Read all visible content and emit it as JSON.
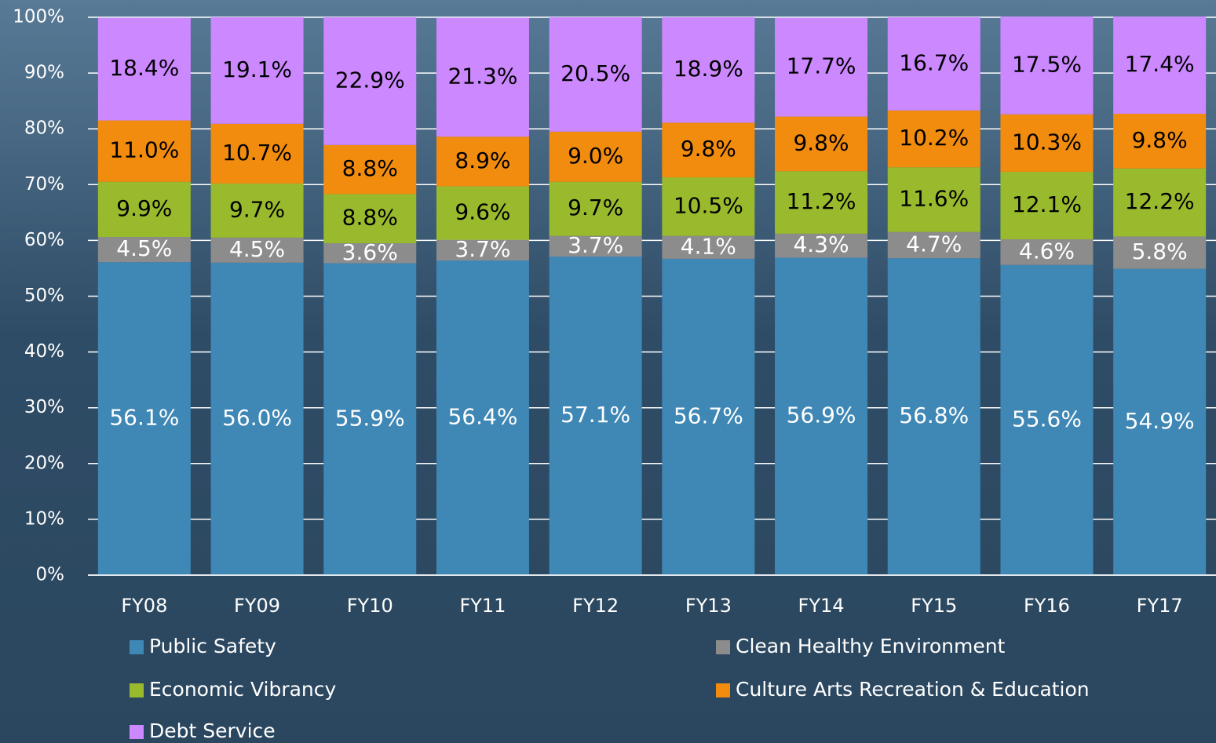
{
  "chart_data": {
    "type": "stacked-bar",
    "categories": [
      "FY08",
      "FY09",
      "FY10",
      "FY11",
      "FY12",
      "FY13",
      "FY14",
      "FY15",
      "FY16",
      "FY17"
    ],
    "series": [
      {
        "name": "Public Safety",
        "color": "#3f87b5",
        "values": [
          56.1,
          56.0,
          55.9,
          56.4,
          57.1,
          56.7,
          56.9,
          56.8,
          55.6,
          54.9
        ],
        "value_labels": [
          "56.1%",
          "56.0%",
          "55.9%",
          "56.4%",
          "57.1%",
          "56.7%",
          "56.9%",
          "56.8%",
          "55.6%",
          "54.9%"
        ]
      },
      {
        "name": "Clean Healthy Environment",
        "color": "#8c8c8c",
        "values": [
          4.5,
          4.5,
          3.6,
          3.7,
          3.7,
          4.1,
          4.3,
          4.7,
          4.6,
          5.8
        ],
        "value_labels": [
          "4.5%",
          "4.5%",
          "3.6%",
          "3.7%",
          "3.7%",
          "4.1%",
          "4.3%",
          "4.7%",
          "4.6%",
          "5.8%"
        ]
      },
      {
        "name": "Economic Vibrancy",
        "color": "#9aba2d",
        "values": [
          9.9,
          9.7,
          8.8,
          9.6,
          9.7,
          10.5,
          11.2,
          11.6,
          12.1,
          12.2
        ],
        "value_labels": [
          "9.9%",
          "9.7%",
          "8.8%",
          "9.6%",
          "9.7%",
          "10.5%",
          "11.2%",
          "11.6%",
          "12.1%",
          "12.2%"
        ]
      },
      {
        "name": "Culture Arts Recreation & Education",
        "color": "#f28c0f",
        "values": [
          11.0,
          10.7,
          8.8,
          8.9,
          9.0,
          9.8,
          9.8,
          10.2,
          10.3,
          9.8
        ],
        "value_labels": [
          "11.0%",
          "10.7%",
          "8.8%",
          "8.9%",
          "9.0%",
          "9.8%",
          "9.8%",
          "10.2%",
          "10.3%",
          "9.8%"
        ]
      },
      {
        "name": "Debt Service",
        "color": "#cc88ff",
        "values": [
          18.4,
          19.1,
          22.9,
          21.3,
          20.5,
          18.9,
          17.7,
          16.7,
          17.5,
          17.4
        ],
        "value_labels": [
          "18.4%",
          "19.1%",
          "22.9%",
          "21.3%",
          "20.5%",
          "18.9%",
          "17.7%",
          "16.7%",
          "17.5%",
          "17.4%"
        ]
      }
    ],
    "ylim": [
      0,
      100
    ],
    "yticks": [
      {
        "value": 0,
        "label": "0%"
      },
      {
        "value": 10,
        "label": "10%"
      },
      {
        "value": 20,
        "label": "20%"
      },
      {
        "value": 30,
        "label": "30%"
      },
      {
        "value": 40,
        "label": "40%"
      },
      {
        "value": 50,
        "label": "50%"
      },
      {
        "value": 60,
        "label": "60%"
      },
      {
        "value": 70,
        "label": "70%"
      },
      {
        "value": 80,
        "label": "80%"
      },
      {
        "value": 90,
        "label": "90%"
      },
      {
        "value": 100,
        "label": "100%"
      }
    ],
    "grid": true,
    "legend": "bottom"
  }
}
